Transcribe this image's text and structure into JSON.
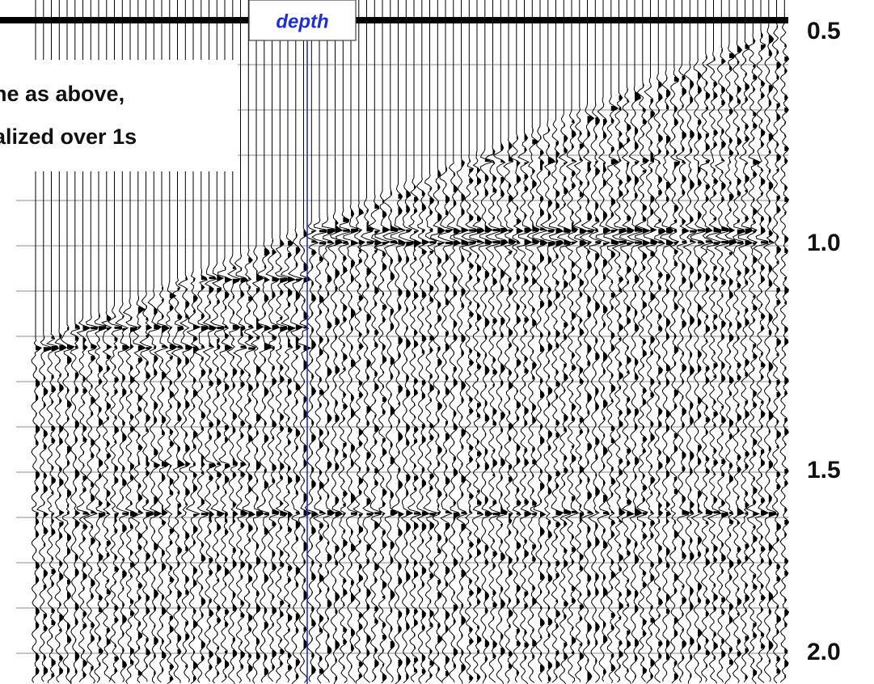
{
  "depth_label": "depth",
  "note": {
    "line1": "ne as above,",
    "line2": "alized over 1s"
  },
  "time_labels": [
    "0.5",
    "1.0",
    "1.5",
    "2.0"
  ]
}
